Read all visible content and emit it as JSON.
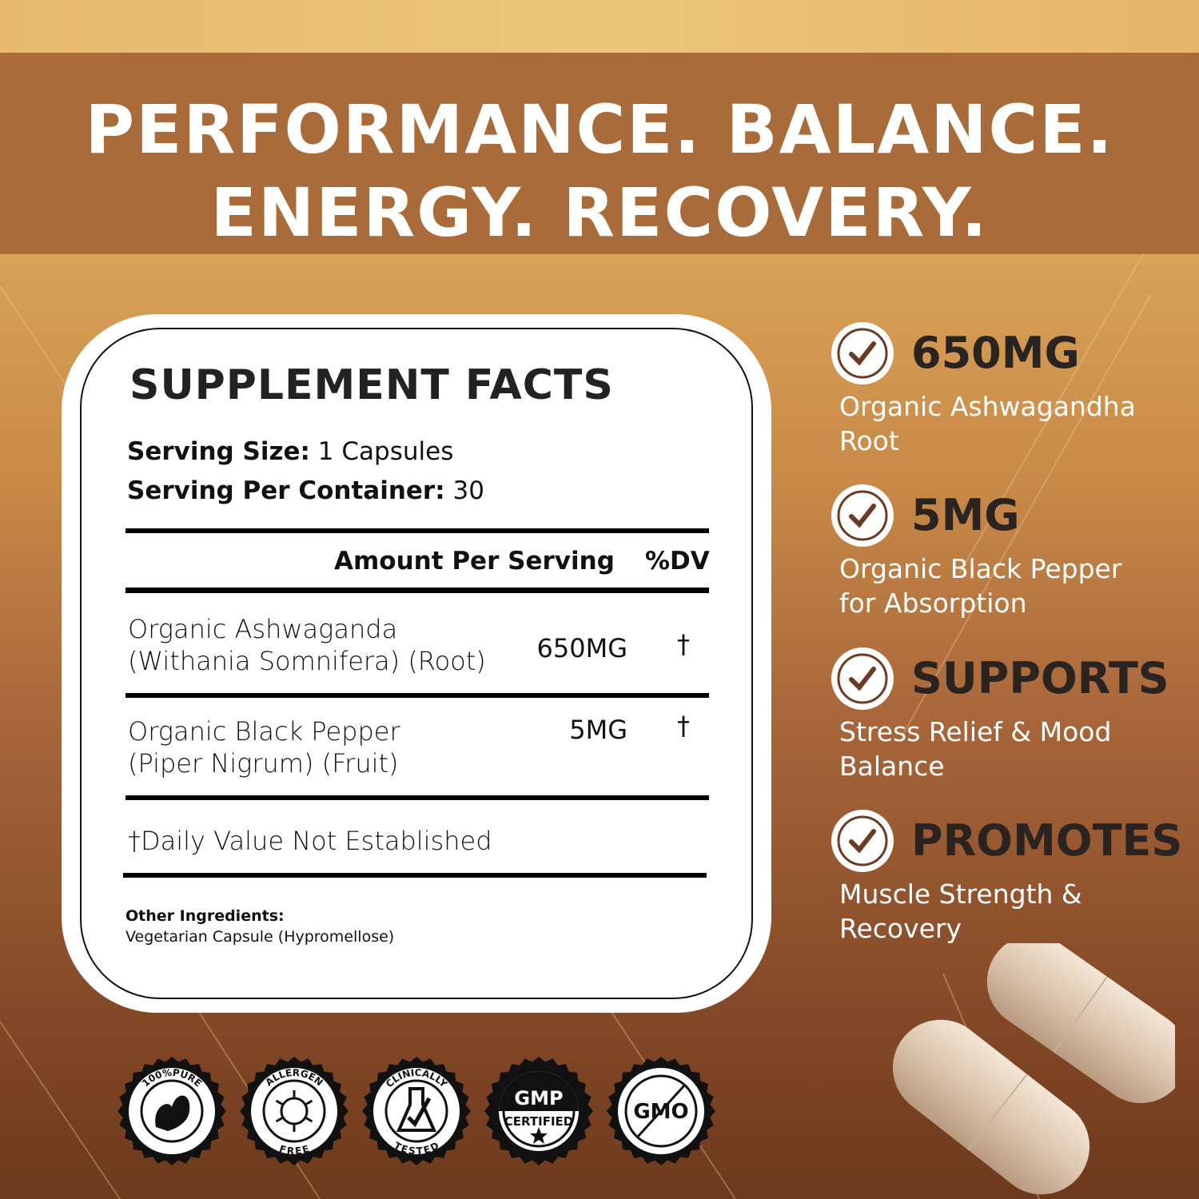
{
  "headline": {
    "line1": "PERFORMANCE. BALANCE.",
    "line2": "ENERGY. RECOVERY."
  },
  "facts": {
    "title": "SUPPLEMENT FACTS",
    "serving_size_label": "Serving Size:",
    "serving_size_value": " 1 Capsules",
    "servings_label": "Serving Per Container:",
    "servings_value": " 30",
    "col_amount": "Amount Per Serving",
    "col_dv": "%DV",
    "rows": [
      {
        "name1": "Organic Ashwaganda",
        "name2": "(Withania Somnifera) (Root)",
        "amount": "650MG",
        "dv": "†"
      },
      {
        "name1": "Organic Black Pepper",
        "name2": "(Piper Nigrum) (Fruit)",
        "amount": "5MG",
        "dv": "†"
      }
    ],
    "footnote": "†Daily Value Not Established",
    "other_label": "Other Ingredients:",
    "other_value": "Vegetarian Capsule (Hypromellose)"
  },
  "features": [
    {
      "title": "650MG",
      "desc1": "Organic Ashwagandha",
      "desc2": "Root",
      "icon": "check-circle-icon"
    },
    {
      "title": "5MG",
      "desc1": "Organic Black Pepper",
      "desc2": "for Absorption",
      "icon": "check-circle-icon"
    },
    {
      "title": "SUPPORTS",
      "desc1": "Stress Relief & Mood",
      "desc2": "Balance",
      "icon": "check-circle-icon"
    },
    {
      "title": "PROMOTES",
      "desc1": "Muscle Strength &",
      "desc2": "Recovery",
      "icon": "check-circle-icon"
    }
  ],
  "badges": [
    {
      "top": "100%PURE",
      "bottom": "",
      "icon": "leaf-icon"
    },
    {
      "top": "ALLERGEN",
      "bottom": "FREE",
      "icon": "virus-icon"
    },
    {
      "top": "CLINICALLY",
      "bottom": "TESTED",
      "icon": "flask-check-icon"
    },
    {
      "top": "GMP",
      "bottom": "CERTIFIED",
      "icon": "star-icon"
    },
    {
      "top": "GMO",
      "bottom": "",
      "icon": "no-gmo-icon"
    }
  ],
  "colors": {
    "banner": "#a96b3a",
    "check": "#6b3a22",
    "text_dark": "#2a2320"
  }
}
